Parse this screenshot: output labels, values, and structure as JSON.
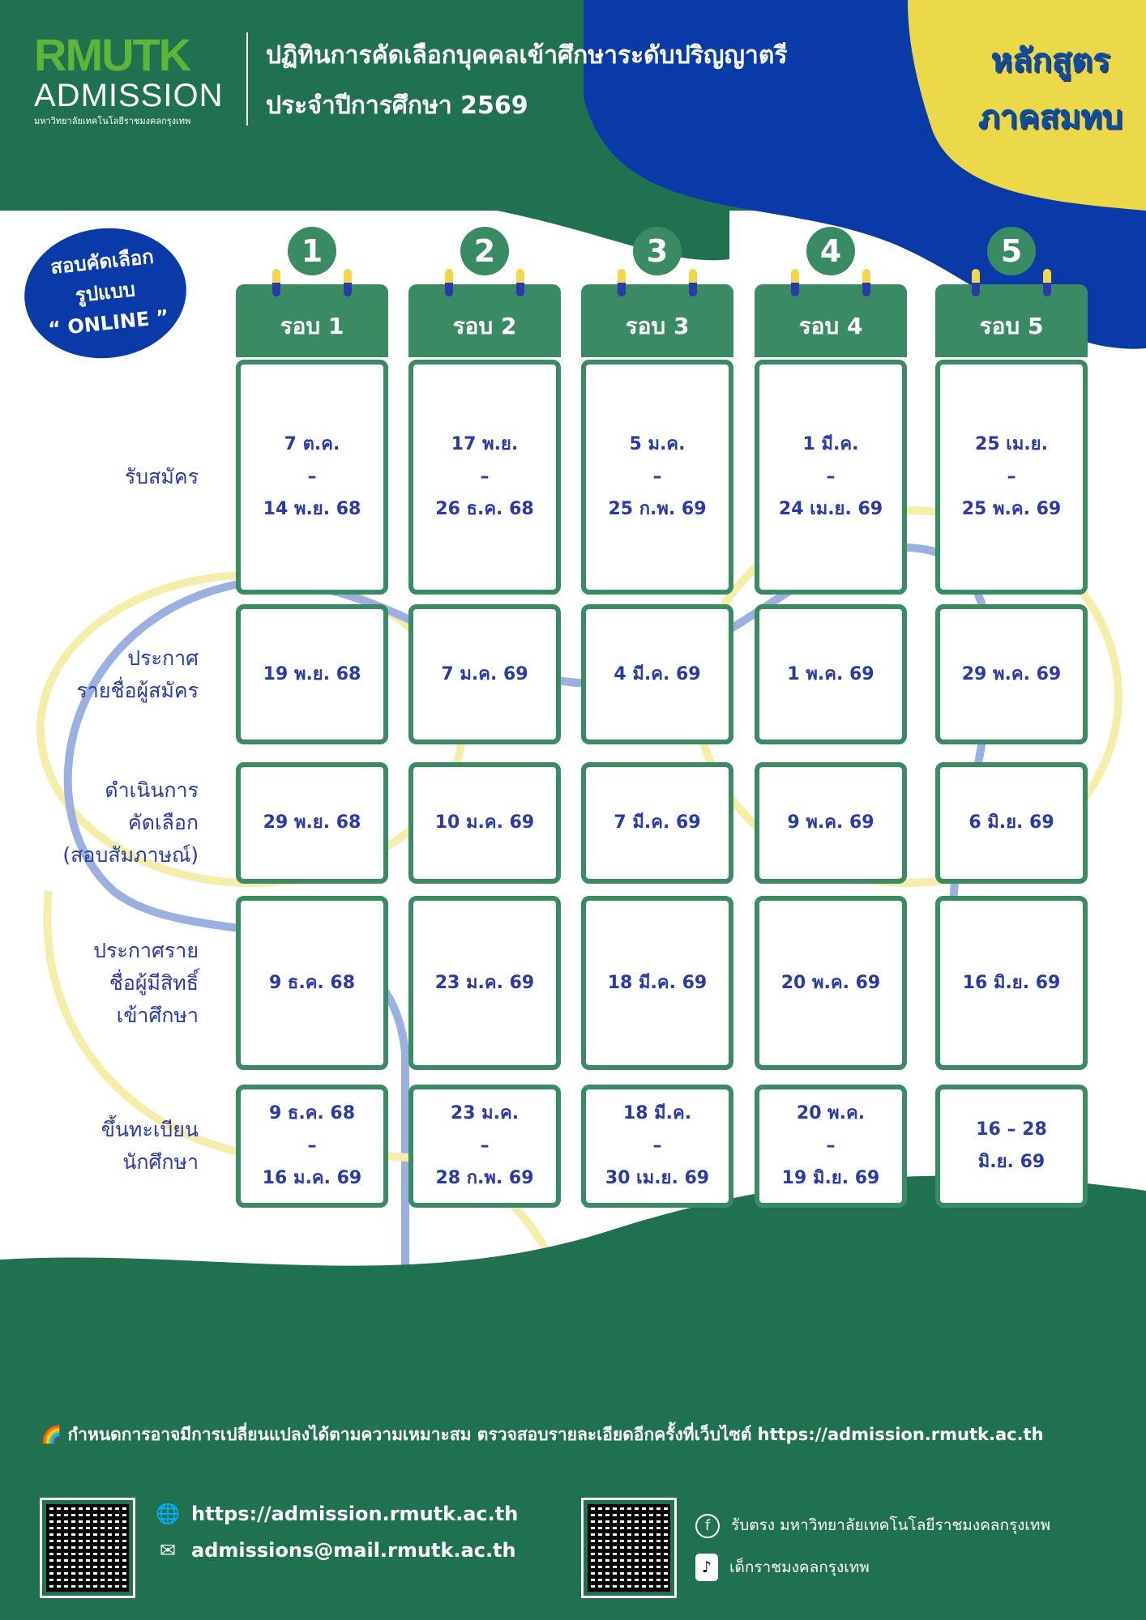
{
  "header": {
    "logo_mark": "RMUTK",
    "logo_sub": "ADMISSION",
    "university": "มหาวิทยาลัยเทคโนโลยีราชมงคลกรุงเทพ",
    "title_line1": "ปฏิทินการคัดเลือกบุคคลเข้าศึกษาระดับปริญญาตรี",
    "title_line2": "ประจำปีการศึกษา 2569",
    "course_line1": "หลักสูตร",
    "course_line2": "ภาคสมทบ"
  },
  "online_badge": {
    "line1": "สอบคัดเลือก",
    "line2": "รูปแบบ",
    "line3": "“ ONLINE ”"
  },
  "rounds": [
    {
      "num": "1",
      "label": "รอบ 1"
    },
    {
      "num": "2",
      "label": "รอบ 2"
    },
    {
      "num": "3",
      "label": "รอบ 3"
    },
    {
      "num": "4",
      "label": "รอบ 4"
    },
    {
      "num": "5",
      "label": "รอบ 5"
    }
  ],
  "rows": [
    {
      "label": "รับสมัคร",
      "cells": [
        "7 ต.ค.\n–\n14 พ.ย. 68",
        "17 พ.ย.\n–\n26 ธ.ค. 68",
        "5 ม.ค.\n–\n25 ก.พ. 69",
        "1 มี.ค.\n–\n24 เม.ย. 69",
        "25 เม.ย.\n–\n25 พ.ค. 69"
      ]
    },
    {
      "label": "ประกาศ\nรายชื่อผู้สมัคร",
      "cells": [
        "19 พ.ย. 68",
        "7 ม.ค. 69",
        "4 มี.ค. 69",
        "1 พ.ค. 69",
        "29 พ.ค. 69"
      ]
    },
    {
      "label": "ดำเนินการ\nคัดเลือก\n(สอบสัมภาษณ์)",
      "cells": [
        "29 พ.ย. 68",
        "10 ม.ค. 69",
        "7 มี.ค. 69",
        "9 พ.ค. 69",
        "6 มิ.ย. 69"
      ]
    },
    {
      "label": "ประกาศราย\nชื่อผู้มีสิทธิ์\nเข้าศึกษา",
      "cells": [
        "9 ธ.ค. 68",
        "23 ม.ค. 69",
        "18 มี.ค. 69",
        "20 พ.ค. 69",
        "16 มิ.ย. 69"
      ]
    },
    {
      "label": "ขึ้นทะเบียน\nนักศึกษา",
      "cells": [
        "9 ธ.ค. 68\n–\n16 ม.ค. 69",
        "23 ม.ค.\n–\n28 ก.พ. 69",
        "18 มี.ค.\n–\n30 เม.ย. 69",
        "20 พ.ค.\n–\n19 มิ.ย. 69",
        "16 – 28\nมิ.ย. 69"
      ]
    }
  ],
  "footer": {
    "note": "กำหนดการอาจมีการเปลี่ยนแปลงได้ตามความเหมาะสม ตรวจสอบรายละเอียดอีกครั้งที่เว็บไซต์ https://admission.rmutk.ac.th",
    "website": "https://admission.rmutk.ac.th",
    "email": "admissions@mail.rmutk.ac.th",
    "facebook": "รับตรง มหาวิทยาลัยเทคโนโลยีราชมงคลกรุงเทพ",
    "tiktok": "เด็กราชมงคลกรุงเทพ"
  },
  "colors": {
    "green": "#1f7150",
    "card_green": "#3a8a63",
    "blue": "#0a3aa8",
    "yellow": "#ecd94a",
    "text_blue": "#2a3aa8"
  }
}
